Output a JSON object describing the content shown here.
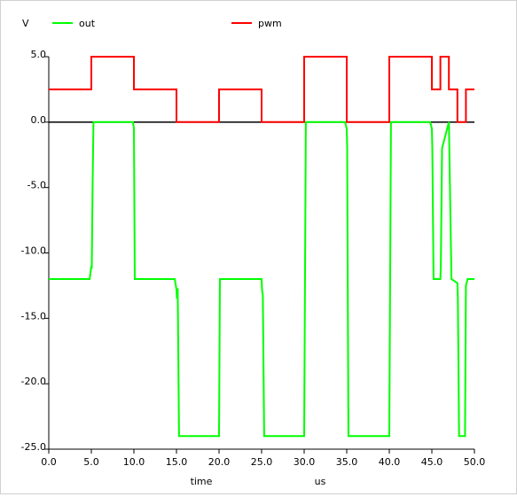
{
  "chart_data": {
    "type": "line",
    "ylabel": "V",
    "xlabel": "time",
    "x_unit": "us",
    "xlim": [
      0,
      50
    ],
    "ylim": [
      -25,
      5
    ],
    "xticks": [
      0,
      5,
      10,
      15,
      20,
      25,
      30,
      35,
      40,
      45,
      50
    ],
    "yticks": [
      5,
      0,
      -5,
      -10,
      -15,
      -20,
      -25
    ],
    "xtick_labels": [
      "0.0",
      "5.0",
      "10.0",
      "15.0",
      "20.0",
      "25.0",
      "30.0",
      "35.0",
      "40.0",
      "45.0",
      "50.0"
    ],
    "ytick_labels": [
      "5.0",
      "0.0",
      "-5.0",
      "-10.0",
      "-15.0",
      "-20.0",
      "-25.0"
    ],
    "grid": false,
    "legend_position": "top",
    "series": [
      {
        "name": "out",
        "color": "#00ff00",
        "x": [
          0,
          4.8,
          5.0,
          5.05,
          5.15,
          5.25,
          5.6,
          9.9,
          10.0,
          10.1,
          14.8,
          15.0,
          15.05,
          15.15,
          15.3,
          20.0,
          20.1,
          25.0,
          25.05,
          25.15,
          25.3,
          30.0,
          30.2,
          34.8,
          35.0,
          35.05,
          35.2,
          40.0,
          40.2,
          44.8,
          45.0,
          45.05,
          45.2,
          46.0,
          46.05,
          46.2,
          47.0,
          47.3,
          48.0,
          48.05,
          48.2,
          48.9,
          49.0,
          49.2,
          50.0
        ],
        "y": [
          -12,
          -12,
          -11,
          -11.2,
          -5,
          0,
          0,
          0,
          -0.5,
          -12,
          -12,
          -12.8,
          -13.5,
          -12.7,
          -24,
          -24,
          -12,
          -12,
          -12.8,
          -13.3,
          -24,
          -24,
          0,
          0,
          -0.5,
          -2,
          -24,
          -24,
          0,
          0,
          -0.5,
          -2,
          -12,
          -12,
          -11,
          -2,
          0,
          -12,
          -12.3,
          -13.4,
          -24,
          -24,
          -12.5,
          -12,
          -12
        ]
      },
      {
        "name": "pwm",
        "color": "#ff0000",
        "x": [
          0,
          5.0,
          5.0,
          10.0,
          10.0,
          15.0,
          15.0,
          20.0,
          20.0,
          25.0,
          25.0,
          30.0,
          30.0,
          35.0,
          35.0,
          40.0,
          40.0,
          45.0,
          45.0,
          46.0,
          46.0,
          47.0,
          47.0,
          48.0,
          48.0,
          49.0,
          49.0,
          50.0
        ],
        "y": [
          2.5,
          2.5,
          5,
          5,
          2.5,
          2.5,
          0,
          0,
          2.5,
          2.5,
          0,
          0,
          5,
          5,
          0,
          0,
          5,
          5,
          2.5,
          2.5,
          5,
          5,
          2.5,
          2.5,
          0,
          0,
          2.5,
          2.5
        ]
      }
    ]
  }
}
